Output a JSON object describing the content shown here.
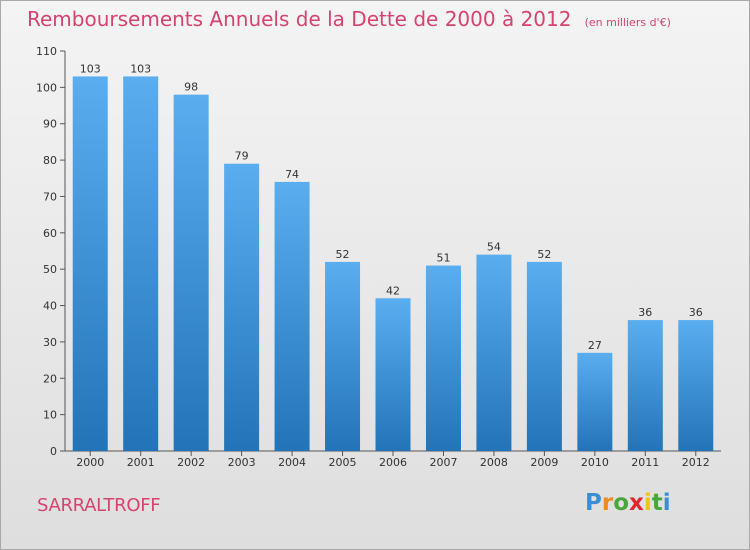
{
  "chart_data": {
    "type": "bar",
    "title": "Remboursements Annuels de la Dette de 2000 à 2012",
    "subtitle": "(en milliers d'€)",
    "categories": [
      "2000",
      "2001",
      "2002",
      "2003",
      "2004",
      "2005",
      "2006",
      "2007",
      "2008",
      "2009",
      "2010",
      "2011",
      "2012"
    ],
    "values": [
      103,
      103,
      98,
      79,
      74,
      52,
      42,
      51,
      54,
      52,
      27,
      36,
      36
    ],
    "ylim": [
      0,
      110
    ],
    "yticks": [
      0,
      10,
      20,
      30,
      40,
      50,
      60,
      70,
      80,
      90,
      100,
      110
    ],
    "grid": false,
    "data_labels": true,
    "bar_color": "#3a8fd8",
    "title_color": "#d6436e"
  },
  "place": "SARRALTROFF",
  "logo": {
    "letters": [
      "P",
      "r",
      "o",
      "x",
      "i",
      "t",
      "i"
    ],
    "colors": [
      "#3b8ed6",
      "#f08a1c",
      "#4aa63c",
      "#e2262d",
      "#f1c40f",
      "#4aa63c",
      "#3b8ed6"
    ]
  }
}
